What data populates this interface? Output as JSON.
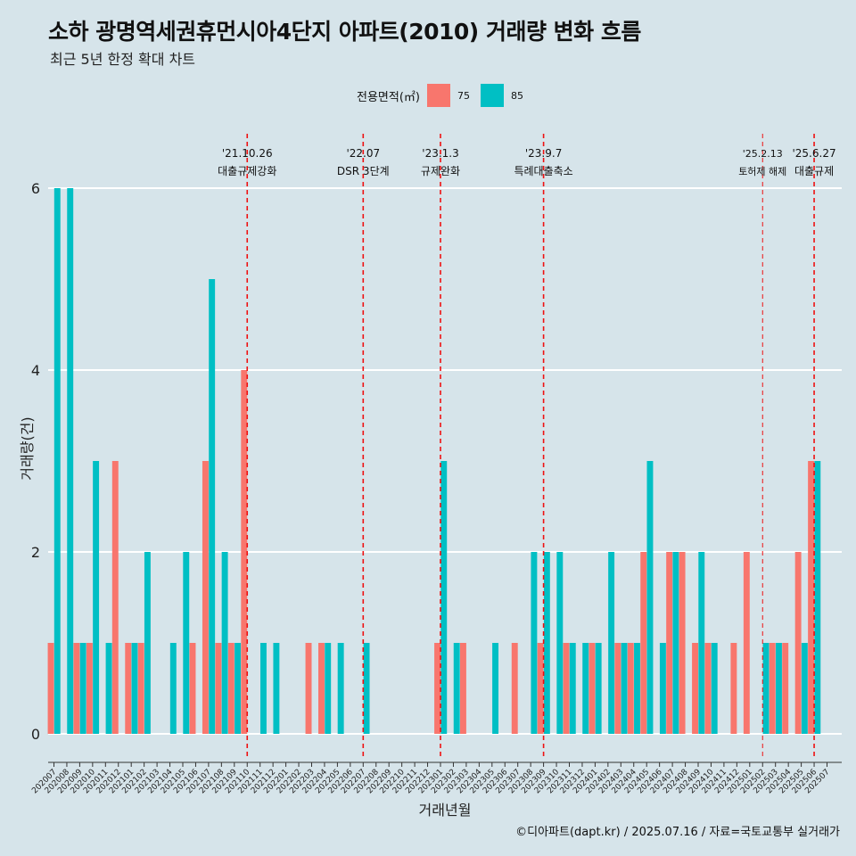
{
  "title": "소하 광명역세권휴먼시아4단지 아파트(2010) 거래량 변화 흐름",
  "subtitle": "최근 5년 한정 확대 차트",
  "caption": "©디아파트(dapt.kr) / 2025.07.16 / 자료=국토교통부 실거래가",
  "legend": {
    "title": "전용면적(㎡)",
    "items": [
      {
        "label": "75",
        "color": "#F8766D"
      },
      {
        "label": "85",
        "color": "#00BFC4"
      }
    ]
  },
  "chart_data": {
    "type": "bar",
    "title": "소하 광명역세권휴먼시아4단지 아파트(2010) 거래량 변화 흐름",
    "xlabel": "거래년월",
    "ylabel": "거래량(건)",
    "ylim": [
      0,
      6
    ],
    "yticks": [
      0,
      2,
      4,
      6
    ],
    "categories": [
      "202007",
      "202008",
      "202009",
      "202010",
      "202011",
      "202012",
      "202101",
      "202102",
      "202103",
      "202104",
      "202105",
      "202106",
      "202107",
      "202108",
      "202109",
      "202110",
      "202111",
      "202112",
      "202201",
      "202202",
      "202203",
      "202204",
      "202205",
      "202206",
      "202207",
      "202208",
      "202209",
      "202210",
      "202211",
      "202212",
      "202301",
      "202302",
      "202303",
      "202304",
      "202305",
      "202306",
      "202307",
      "202308",
      "202309",
      "202310",
      "202311",
      "202312",
      "202401",
      "202402",
      "202403",
      "202404",
      "202405",
      "202406",
      "202407",
      "202408",
      "202409",
      "202410",
      "202411",
      "202412",
      "202501",
      "202502",
      "202503",
      "202504",
      "202505",
      "202506",
      "202507"
    ],
    "series": [
      {
        "name": "75",
        "color": "#F8766D",
        "values": [
          1,
          0,
          1,
          1,
          0,
          3,
          1,
          1,
          0,
          0,
          0,
          1,
          3,
          1,
          1,
          4,
          0,
          0,
          0,
          0,
          1,
          1,
          0,
          0,
          0,
          0,
          0,
          0,
          0,
          0,
          1,
          0,
          1,
          0,
          0,
          0,
          1,
          0,
          1,
          0,
          1,
          0,
          1,
          0,
          1,
          1,
          2,
          0,
          2,
          2,
          1,
          1,
          0,
          1,
          2,
          0,
          1,
          1,
          2,
          3,
          0
        ]
      },
      {
        "name": "85",
        "color": "#00BFC4",
        "values": [
          6,
          6,
          1,
          3,
          1,
          0,
          1,
          2,
          0,
          1,
          2,
          0,
          5,
          2,
          1,
          0,
          1,
          1,
          0,
          0,
          0,
          1,
          1,
          0,
          1,
          0,
          0,
          0,
          0,
          0,
          3,
          1,
          0,
          0,
          1,
          0,
          0,
          2,
          2,
          2,
          1,
          1,
          1,
          2,
          1,
          1,
          3,
          1,
          2,
          0,
          2,
          1,
          0,
          0,
          0,
          1,
          1,
          0,
          1,
          3,
          0
        ]
      }
    ],
    "events": [
      {
        "index": 15,
        "date": "'21.10.26",
        "label": "대출규제강화",
        "small": false
      },
      {
        "index": 24,
        "date": "'22.07",
        "label": "DSR 3단계",
        "small": false
      },
      {
        "index": 30,
        "date": "'23.1.3",
        "label": "규제완화",
        "small": false
      },
      {
        "index": 38,
        "date": "'23.9.7",
        "label": "특례대출축소",
        "small": false
      },
      {
        "index": 55,
        "date": "'25.2.13",
        "label": "토허제 해제",
        "small": true
      },
      {
        "index": 59,
        "date": "'25.6.27",
        "label": "대출규제",
        "small": false
      }
    ]
  }
}
